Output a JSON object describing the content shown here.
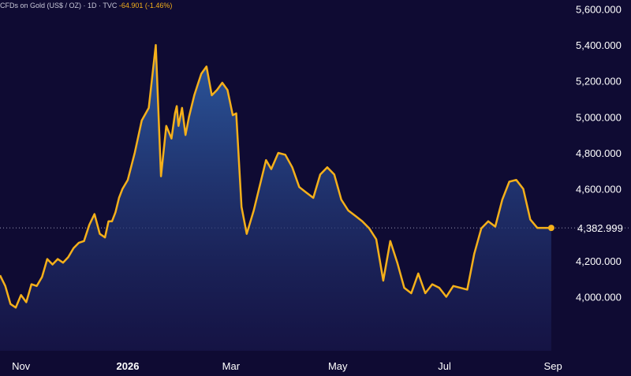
{
  "header": {
    "title": "CFDs on Gold (US$ / OZ) · 1D · TVC",
    "change": "-64.901 (-1.46%)"
  },
  "colors": {
    "background": "#0f0b33",
    "line": "#f5b01a",
    "area_top": "#2e5ea6",
    "area_bottom": "#1a1a52"
  },
  "chart_data": {
    "type": "area",
    "title": "CFDs on Gold (US$ / OZ) · 1D · TVC",
    "ylim": [
      3700,
      5650
    ],
    "y_ticks": [
      {
        "value": 4000,
        "label": "4,000.000"
      },
      {
        "value": 4200,
        "label": "4,200.000"
      },
      {
        "value": 4600,
        "label": "4,600.000"
      },
      {
        "value": 4800,
        "label": "4,800.000"
      },
      {
        "value": 5000,
        "label": "5,000.000"
      },
      {
        "value": 5200,
        "label": "5,200.000"
      },
      {
        "value": 5400,
        "label": "5,400.000"
      },
      {
        "value": 5600,
        "label": "5,600.000"
      }
    ],
    "x_ticks": [
      {
        "date": "2025-11-01",
        "label": "Nov",
        "bold": false
      },
      {
        "date": "2026-01-01",
        "label": "2026",
        "bold": true
      },
      {
        "date": "2026-03-01",
        "label": "Mar",
        "bold": false
      },
      {
        "date": "2026-05-01",
        "label": "May",
        "bold": false
      },
      {
        "date": "2026-07-01",
        "label": "Jul",
        "bold": false
      },
      {
        "date": "2026-09-01",
        "label": "Sep",
        "bold": false
      }
    ],
    "xlim": [
      "2025-10-20",
      "2026-09-05"
    ],
    "last_value": 4383,
    "last_label": "4,382.999",
    "series": [
      {
        "x": [
          "2025-10-20",
          "2025-10-23",
          "2025-10-26",
          "2025-10-29",
          "2025-11-01",
          "2025-11-04",
          "2025-11-07",
          "2025-11-10",
          "2025-11-13",
          "2025-11-16",
          "2025-11-19",
          "2025-11-22",
          "2025-11-25",
          "2025-11-28",
          "2025-12-01",
          "2025-12-04",
          "2025-12-07",
          "2025-12-10",
          "2025-12-13",
          "2025-12-16",
          "2025-12-19",
          "2025-12-21",
          "2025-12-23",
          "2025-12-25",
          "2025-12-27",
          "2025-12-29",
          "2026-01-01",
          "2026-01-05",
          "2026-01-09",
          "2026-01-13",
          "2026-01-17",
          "2026-01-20",
          "2026-01-23",
          "2026-01-26",
          "2026-01-28",
          "2026-01-29",
          "2026-01-30",
          "2026-02-01",
          "2026-02-03",
          "2026-02-05",
          "2026-02-08",
          "2026-02-10",
          "2026-02-12",
          "2026-02-15",
          "2026-02-18",
          "2026-02-21",
          "2026-02-24",
          "2026-02-27",
          "2026-03-02",
          "2026-03-04",
          "2026-03-07",
          "2026-03-10",
          "2026-03-14",
          "2026-03-18",
          "2026-03-21",
          "2026-03-24",
          "2026-03-28",
          "2026-04-01",
          "2026-04-05",
          "2026-04-09",
          "2026-04-13",
          "2026-04-17",
          "2026-04-21",
          "2026-04-25",
          "2026-04-29",
          "2026-05-03",
          "2026-05-07",
          "2026-05-11",
          "2026-05-15",
          "2026-05-19",
          "2026-05-23",
          "2026-05-27",
          "2026-05-31",
          "2026-06-04",
          "2026-06-08",
          "2026-06-12",
          "2026-06-16",
          "2026-06-20",
          "2026-06-24",
          "2026-06-28",
          "2026-07-02",
          "2026-07-06",
          "2026-07-10",
          "2026-07-14",
          "2026-07-18",
          "2026-07-22",
          "2026-07-26",
          "2026-07-30",
          "2026-08-03",
          "2026-08-07",
          "2026-08-11",
          "2026-08-15",
          "2026-08-19",
          "2026-08-23",
          "2026-08-27",
          "2026-08-31"
        ],
        "y": [
          4120,
          4060,
          3960,
          3940,
          4010,
          3970,
          4070,
          4060,
          4110,
          4210,
          4180,
          4210,
          4190,
          4220,
          4270,
          4300,
          4310,
          4400,
          4460,
          4350,
          4330,
          4420,
          4420,
          4470,
          4550,
          4600,
          4650,
          4800,
          4980,
          5050,
          5400,
          4670,
          4950,
          4880,
          5020,
          5060,
          4950,
          5050,
          4900,
          5000,
          5120,
          5180,
          5240,
          5280,
          5120,
          5150,
          5190,
          5150,
          5010,
          5020,
          4500,
          4350,
          4480,
          4640,
          4760,
          4710,
          4800,
          4790,
          4720,
          4610,
          4580,
          4550,
          4680,
          4720,
          4680,
          4540,
          4480,
          4450,
          4420,
          4380,
          4320,
          4090,
          4310,
          4190,
          4050,
          4020,
          4130,
          4020,
          4070,
          4050,
          4000,
          4060,
          4050,
          4040,
          4240,
          4380,
          4420,
          4390,
          4540,
          4640,
          4650,
          4600,
          4430,
          4383,
          4383,
          4383
        ]
      }
    ]
  }
}
